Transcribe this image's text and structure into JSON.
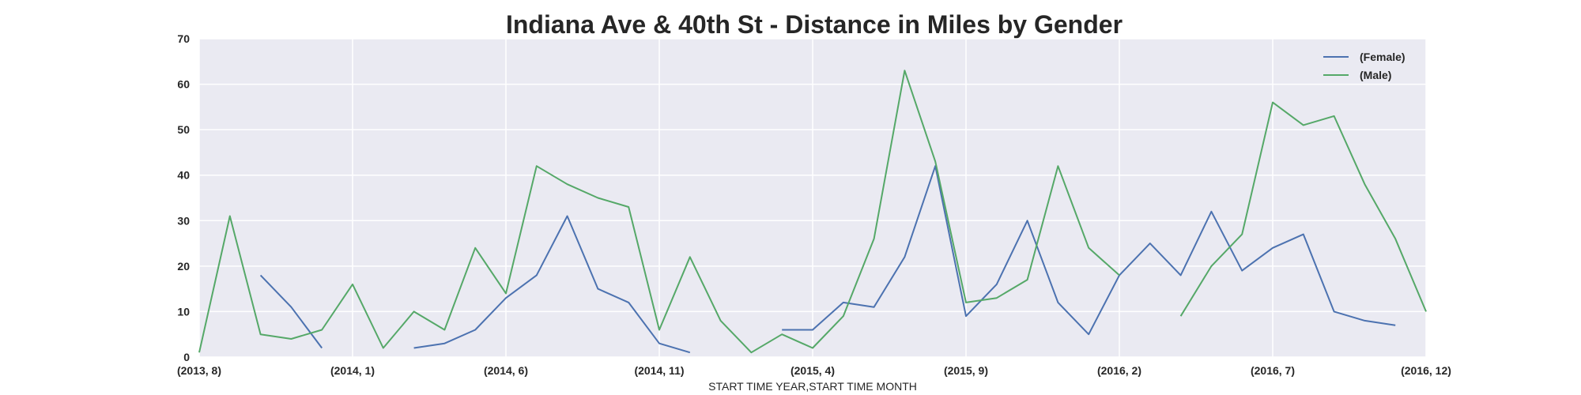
{
  "chart_data": {
    "type": "line",
    "title": "Indiana Ave & 40th St - Distance in Miles by Gender",
    "xlabel": "START TIME YEAR,START TIME MONTH",
    "ylabel": "",
    "ylim": [
      0,
      70
    ],
    "yticks": [
      "0",
      "10",
      "20",
      "30",
      "40",
      "50",
      "60",
      "70"
    ],
    "categories": [
      "(2013, 8)",
      "(2013, 9)",
      "(2013, 10)",
      "(2013, 11)",
      "(2013, 12)",
      "(2014, 1)",
      "(2014, 2)",
      "(2014, 3)",
      "(2014, 4)",
      "(2014, 5)",
      "(2014, 6)",
      "(2014, 7)",
      "(2014, 8)",
      "(2014, 9)",
      "(2014, 10)",
      "(2014, 11)",
      "(2014, 12)",
      "(2015, 1)",
      "(2015, 2)",
      "(2015, 3)",
      "(2015, 4)",
      "(2015, 5)",
      "(2015, 6)",
      "(2015, 7)",
      "(2015, 8)",
      "(2015, 9)",
      "(2015, 10)",
      "(2015, 11)",
      "(2015, 12)",
      "(2016, 1)",
      "(2016, 2)",
      "(2016, 3)",
      "(2016, 4)",
      "(2016, 5)",
      "(2016, 6)",
      "(2016, 7)",
      "(2016, 8)",
      "(2016, 9)",
      "(2016, 10)",
      "(2016, 11)",
      "(2016, 12)"
    ],
    "xtick_labels": [
      "(2013, 8)",
      "(2014, 1)",
      "(2014, 6)",
      "(2014, 11)",
      "(2015, 4)",
      "(2015, 9)",
      "(2016, 2)",
      "(2016, 7)",
      "(2016, 12)"
    ],
    "grid": true,
    "legend": "top-right",
    "series": [
      {
        "name": "(Female)",
        "color": "#4c72b0",
        "values": [
          null,
          null,
          18,
          11,
          2,
          null,
          null,
          2,
          3,
          6,
          13,
          18,
          31,
          15,
          12,
          3,
          1,
          null,
          null,
          6,
          6,
          12,
          11,
          22,
          42,
          9,
          16,
          30,
          12,
          5,
          18,
          25,
          18,
          32,
          19,
          24,
          27,
          10,
          8,
          7,
          null
        ]
      },
      {
        "name": "(Male)",
        "color": "#55a868",
        "values": [
          1,
          31,
          5,
          4,
          6,
          16,
          2,
          10,
          6,
          24,
          14,
          42,
          38,
          35,
          33,
          6,
          22,
          8,
          1,
          5,
          2,
          9,
          26,
          63,
          43,
          12,
          13,
          17,
          42,
          24,
          18,
          null,
          9,
          20,
          27,
          56,
          51,
          53,
          38,
          26,
          10
        ]
      }
    ]
  }
}
